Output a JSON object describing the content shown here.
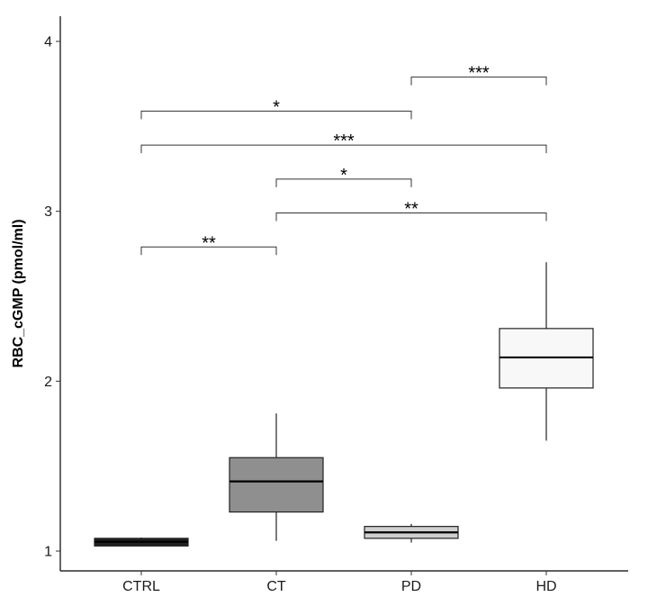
{
  "chart_data": {
    "type": "boxplot",
    "ylabel": "RBC_cGMP (pmol/ml)",
    "xlabel": "",
    "ylim": [
      0.9,
      4.15
    ],
    "yticks": [
      1,
      2,
      3,
      4
    ],
    "grid": false,
    "categories": [
      "CTRL",
      "CT",
      "PD",
      "HD"
    ],
    "boxes": [
      {
        "category": "CTRL",
        "min": 1.03,
        "q1": 1.03,
        "median": 1.055,
        "q3": 1.075,
        "max": 1.08,
        "fill": "#222222"
      },
      {
        "category": "CT",
        "min": 1.06,
        "q1": 1.23,
        "median": 1.41,
        "q3": 1.55,
        "max": 1.81,
        "fill": "#8f8f8f"
      },
      {
        "category": "PD",
        "min": 1.05,
        "q1": 1.075,
        "median": 1.11,
        "q3": 1.145,
        "max": 1.16,
        "fill": "#cfcfcf"
      },
      {
        "category": "HD",
        "min": 1.65,
        "q1": 1.96,
        "median": 2.14,
        "q3": 2.31,
        "max": 2.7,
        "fill": "#f8f8f8"
      }
    ],
    "significance": [
      {
        "from": "CTRL",
        "to": "CT",
        "y": 2.79,
        "label": "**"
      },
      {
        "from": "CT",
        "to": "HD",
        "y": 2.99,
        "label": "**"
      },
      {
        "from": "CT",
        "to": "PD",
        "y": 3.19,
        "label": "*"
      },
      {
        "from": "CTRL",
        "to": "HD",
        "y": 3.39,
        "label": "***"
      },
      {
        "from": "CTRL",
        "to": "PD",
        "y": 3.59,
        "label": "*"
      },
      {
        "from": "PD",
        "to": "HD",
        "y": 3.79,
        "label": "***"
      }
    ]
  }
}
